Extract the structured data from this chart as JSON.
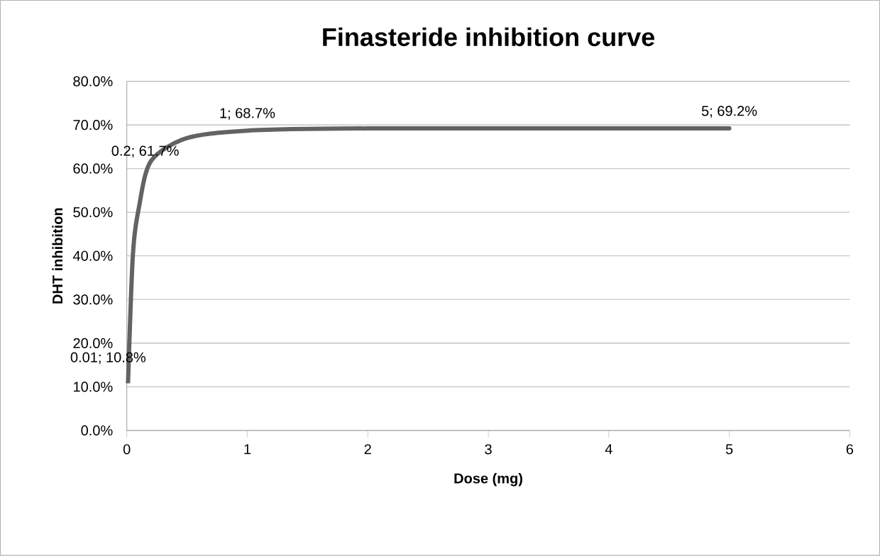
{
  "chart_data": {
    "type": "line",
    "title": "Finasteride inhibition curve",
    "xlabel": "Dose (mg)",
    "ylabel": "DHT inhibition",
    "x": [
      0.01,
      0.05,
      0.1,
      0.2,
      0.5,
      1,
      2,
      5
    ],
    "series": [
      {
        "color": "#636363",
        "values": [
          10.8,
          40,
          51,
          61.7,
          67,
          68.7,
          69.2,
          69.2
        ],
        "value_labels": [
          "0.01; 10.8%",
          null,
          null,
          "0.2; 61.7%",
          null,
          "1; 68.7%",
          null,
          "5; 69.2%"
        ]
      }
    ],
    "xlim": [
      0,
      6
    ],
    "xticks": [
      0,
      1,
      2,
      3,
      4,
      5,
      6
    ],
    "ylim": [
      0,
      80
    ],
    "yticks": [
      {
        "value": 0,
        "label": "0.0%"
      },
      {
        "value": 10,
        "label": "10.0%"
      },
      {
        "value": 20,
        "label": "20.0%"
      },
      {
        "value": 30,
        "label": "30.0%"
      },
      {
        "value": 40,
        "label": "40.0%"
      },
      {
        "value": 50,
        "label": "50.0%"
      },
      {
        "value": 60,
        "label": "60.0%"
      },
      {
        "value": 70,
        "label": "70.0%"
      },
      {
        "value": 80,
        "label": "80.0%"
      }
    ],
    "grid": "y",
    "marker": "none",
    "line_style": "solid"
  }
}
